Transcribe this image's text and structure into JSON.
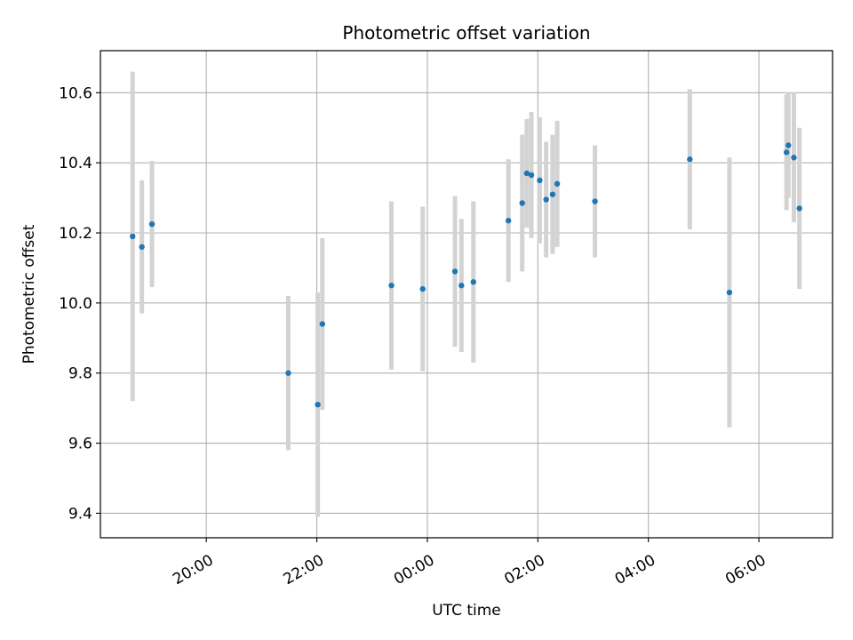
{
  "chart_data": {
    "type": "scatter",
    "title": "Photometric offset variation",
    "xlabel": "UTC time",
    "ylabel": "Photometric offset",
    "x_axis_kind": "time",
    "x_axis_start_date": "2023-01-01",
    "xlim": [
      "2023-01-01T18:05",
      "2023-01-02T07:20"
    ],
    "ylim": [
      9.33,
      10.72
    ],
    "grid": true,
    "x_ticks": [
      {
        "time": "2023-01-01T20:00",
        "label": "20:00"
      },
      {
        "time": "2023-01-01T22:00",
        "label": "22:00"
      },
      {
        "time": "2023-01-02T00:00",
        "label": "00:00"
      },
      {
        "time": "2023-01-02T02:00",
        "label": "02:00"
      },
      {
        "time": "2023-01-02T04:00",
        "label": "04:00"
      },
      {
        "time": "2023-01-02T06:00",
        "label": "06:00"
      }
    ],
    "y_ticks": [
      {
        "value": 9.4,
        "label": "9.4"
      },
      {
        "value": 9.6,
        "label": "9.6"
      },
      {
        "value": 9.8,
        "label": "9.8"
      },
      {
        "value": 10.0,
        "label": "10.0"
      },
      {
        "value": 10.2,
        "label": "10.2"
      },
      {
        "value": 10.4,
        "label": "10.4"
      },
      {
        "value": 10.6,
        "label": "10.6"
      }
    ],
    "point_color": "#1f77b4",
    "errorbar_color": "#d3d3d3",
    "points": [
      {
        "time": "2023-01-01T18:40",
        "y": 10.19,
        "err": 0.47
      },
      {
        "time": "2023-01-01T18:50",
        "y": 10.16,
        "err": 0.19
      },
      {
        "time": "2023-01-01T19:01",
        "y": 10.225,
        "err": 0.18
      },
      {
        "time": "2023-01-01T21:29",
        "y": 9.8,
        "err": 0.22
      },
      {
        "time": "2023-01-01T22:01",
        "y": 9.71,
        "err": 0.32
      },
      {
        "time": "2023-01-01T22:06",
        "y": 9.94,
        "err": 0.245
      },
      {
        "time": "2023-01-01T23:21",
        "y": 10.05,
        "err": 0.24
      },
      {
        "time": "2023-01-01T23:55",
        "y": 10.04,
        "err": 0.235
      },
      {
        "time": "2023-01-02T00:30",
        "y": 10.09,
        "err": 0.215
      },
      {
        "time": "2023-01-02T00:37",
        "y": 10.05,
        "err": 0.19
      },
      {
        "time": "2023-01-02T00:50",
        "y": 10.06,
        "err": 0.23
      },
      {
        "time": "2023-01-02T01:28",
        "y": 10.235,
        "err": 0.175
      },
      {
        "time": "2023-01-02T01:43",
        "y": 10.285,
        "err": 0.195
      },
      {
        "time": "2023-01-02T01:48",
        "y": 10.37,
        "err": 0.155
      },
      {
        "time": "2023-01-02T01:53",
        "y": 10.365,
        "err": 0.18
      },
      {
        "time": "2023-01-02T02:02",
        "y": 10.35,
        "err": 0.18
      },
      {
        "time": "2023-01-02T02:09",
        "y": 10.295,
        "err": 0.165
      },
      {
        "time": "2023-01-02T02:16",
        "y": 10.31,
        "err": 0.17
      },
      {
        "time": "2023-01-02T02:21",
        "y": 10.34,
        "err": 0.18
      },
      {
        "time": "2023-01-02T03:02",
        "y": 10.29,
        "err": 0.16
      },
      {
        "time": "2023-01-02T04:45",
        "y": 10.41,
        "err": 0.2
      },
      {
        "time": "2023-01-02T05:28",
        "y": 10.03,
        "err": 0.385
      },
      {
        "time": "2023-01-02T06:30",
        "y": 10.43,
        "err": 0.165
      },
      {
        "time": "2023-01-02T06:32",
        "y": 10.45,
        "err": 0.15
      },
      {
        "time": "2023-01-02T06:38",
        "y": 10.415,
        "err": 0.185
      },
      {
        "time": "2023-01-02T06:44",
        "y": 10.27,
        "err": 0.23
      }
    ]
  }
}
